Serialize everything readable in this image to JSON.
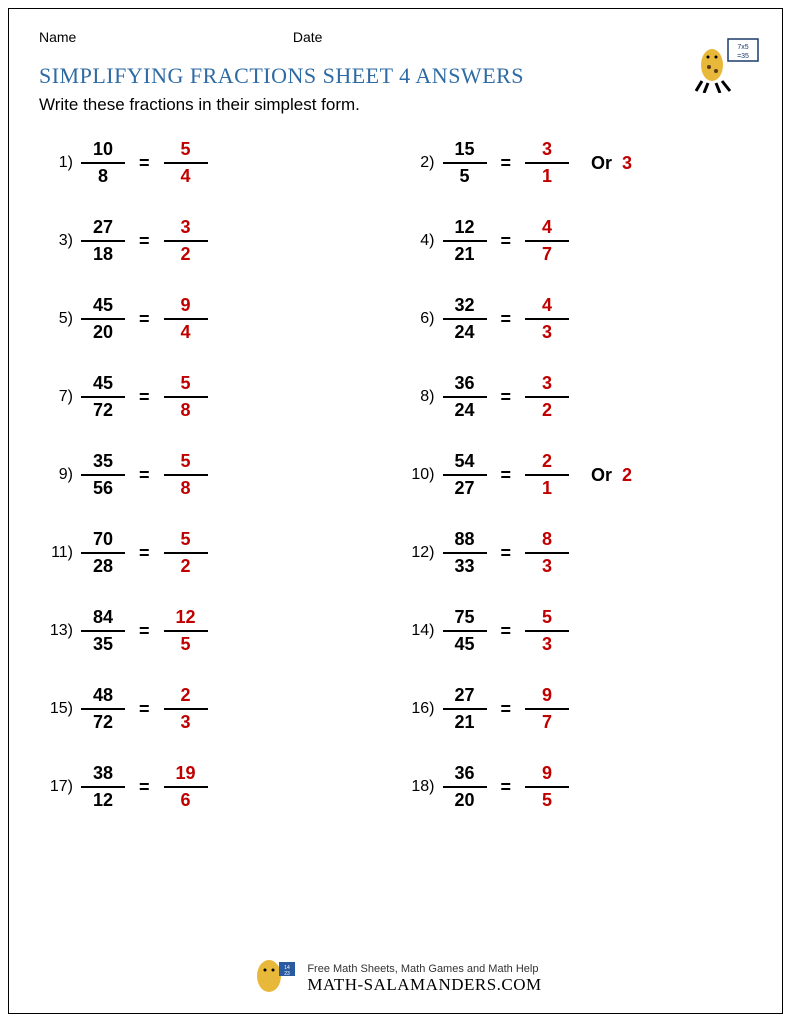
{
  "meta": {
    "name_label": "Name",
    "date_label": "Date"
  },
  "title": "SIMPLIFYING FRACTIONS SHEET 4 ANSWERS",
  "instruction": "Write these fractions in their simplest form.",
  "style": {
    "title_color": "#2e6aa3",
    "answer_color": "#c00000",
    "text_color": "#000000",
    "title_fontsize": 22,
    "body_fontsize": 18,
    "fraction_bar_color": "#000000"
  },
  "problems": [
    {
      "n": "1)",
      "num": "10",
      "den": "8",
      "anum": "5",
      "aden": "4"
    },
    {
      "n": "2)",
      "num": "15",
      "den": "5",
      "anum": "3",
      "aden": "1",
      "or": "3"
    },
    {
      "n": "3)",
      "num": "27",
      "den": "18",
      "anum": "3",
      "aden": "2"
    },
    {
      "n": "4)",
      "num": "12",
      "den": "21",
      "anum": "4",
      "aden": "7"
    },
    {
      "n": "5)",
      "num": "45",
      "den": "20",
      "anum": "9",
      "aden": "4"
    },
    {
      "n": "6)",
      "num": "32",
      "den": "24",
      "anum": "4",
      "aden": "3"
    },
    {
      "n": "7)",
      "num": "45",
      "den": "72",
      "anum": "5",
      "aden": "8"
    },
    {
      "n": "8)",
      "num": "36",
      "den": "24",
      "anum": "3",
      "aden": "2"
    },
    {
      "n": "9)",
      "num": "35",
      "den": "56",
      "anum": "5",
      "aden": "8"
    },
    {
      "n": "10)",
      "num": "54",
      "den": "27",
      "anum": "2",
      "aden": "1",
      "or": "2"
    },
    {
      "n": "11)",
      "num": "70",
      "den": "28",
      "anum": "5",
      "aden": "2"
    },
    {
      "n": "12)",
      "num": "88",
      "den": "33",
      "anum": "8",
      "aden": "3"
    },
    {
      "n": "13)",
      "num": "84",
      "den": "35",
      "anum": "12",
      "aden": "5"
    },
    {
      "n": "14)",
      "num": "75",
      "den": "45",
      "anum": "5",
      "aden": "3"
    },
    {
      "n": "15)",
      "num": "48",
      "den": "72",
      "anum": "2",
      "aden": "3"
    },
    {
      "n": "16)",
      "num": "27",
      "den": "21",
      "anum": "9",
      "aden": "7"
    },
    {
      "n": "17)",
      "num": "38",
      "den": "12",
      "anum": "19",
      "aden": "6"
    },
    {
      "n": "18)",
      "num": "36",
      "den": "20",
      "anum": "9",
      "aden": "5"
    }
  ],
  "or_label": "Or",
  "footer": {
    "line1": "Free Math Sheets, Math Games and Math Help",
    "line2": "MATH-SALAMANDERS.COM"
  }
}
